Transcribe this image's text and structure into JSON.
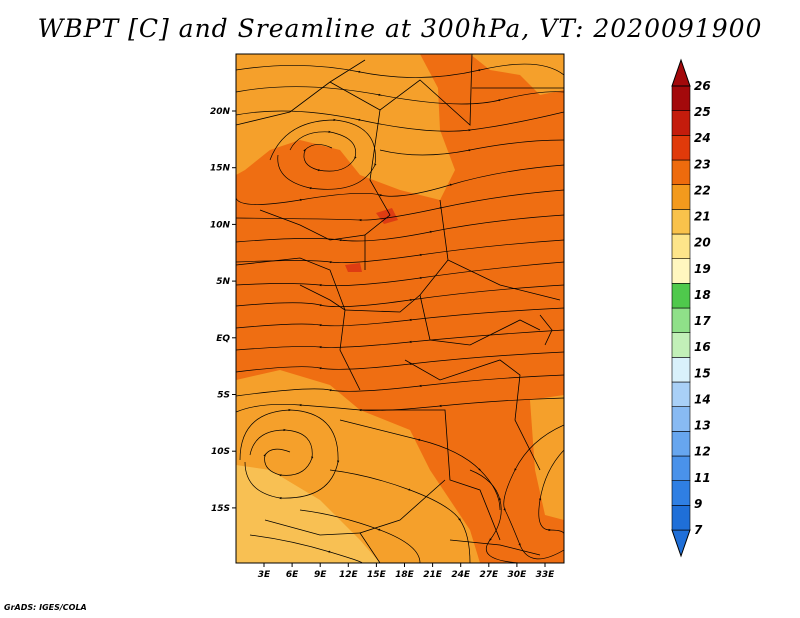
{
  "title": "WBPT [C] and Sreamline at 300hPa, VT: 2020091900",
  "credit": "GrADS: IGES/COLA",
  "map": {
    "lat_labels": [
      "20N",
      "15N",
      "10N",
      "5N",
      "EQ",
      "5S",
      "10S",
      "15S"
    ],
    "lon_labels": [
      "3E",
      "6E",
      "9E",
      "12E",
      "15E",
      "18E",
      "21E",
      "24E",
      "27E",
      "30E",
      "33E"
    ],
    "field": "WBPT",
    "level": "300hPa",
    "valid_time": "2020091900"
  },
  "colorbar": {
    "labels": [
      "7",
      "9",
      "11",
      "12",
      "13",
      "14",
      "15",
      "16",
      "17",
      "18",
      "19",
      "20",
      "21",
      "22",
      "23",
      "24",
      "25",
      "26"
    ],
    "colors": [
      "#1f6fd8",
      "#2f7fe3",
      "#4a92ea",
      "#67a6ef",
      "#88baf3",
      "#a9d0f7",
      "#d9f1fb",
      "#c2f0b8",
      "#8fe089",
      "#4fc94c",
      "#fff7bf",
      "#fde58a",
      "#f9c24b",
      "#f39a1d",
      "#ee6b0d",
      "#e03a0a",
      "#c41c0c",
      "#a3090b"
    ]
  },
  "colors": {
    "field_main": "#ef6e12",
    "field_warm": "#f5a02b",
    "field_pale": "#f8c053",
    "field_hot": "#de3c12"
  }
}
